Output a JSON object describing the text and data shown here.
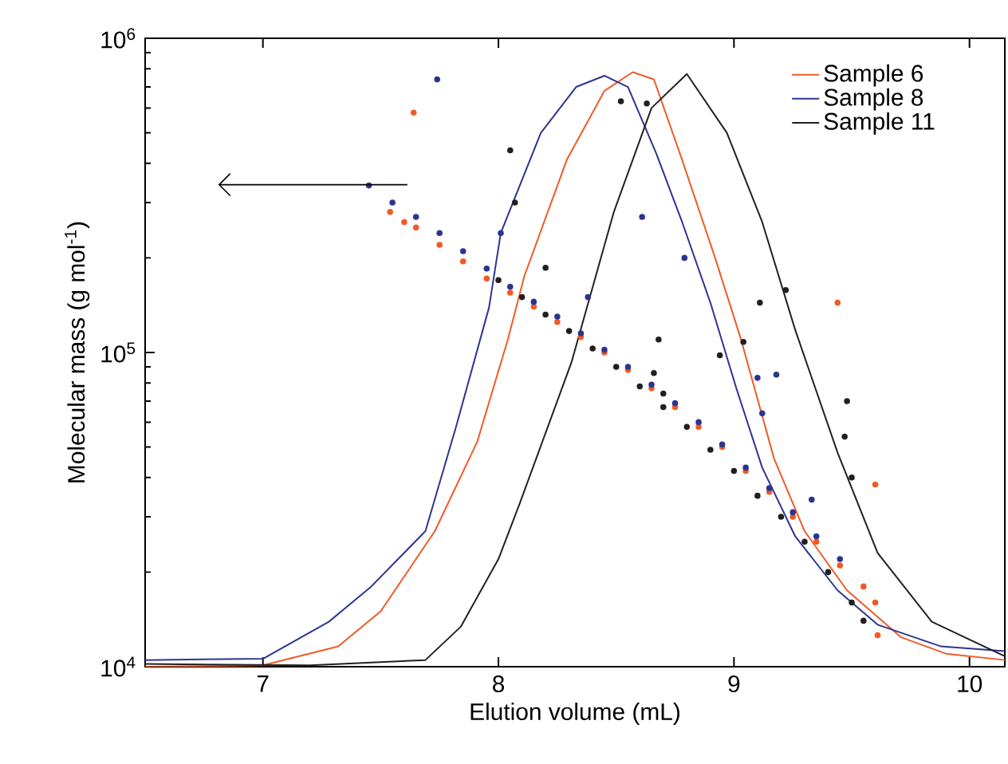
{
  "chart_data": {
    "type": "line",
    "xlabel": "Elution volume (mL)",
    "ylabel": "Molecular mass (g mol$^{-1}$)",
    "log": "y",
    "xlim": [
      6.5,
      10.15
    ],
    "ylim": [
      10000,
      1000000
    ],
    "xticks": [
      7,
      8,
      9,
      10
    ],
    "yticks": [
      {
        "value": 10000,
        "label": "10$^{4}$"
      },
      {
        "value": 100000,
        "label": "10$^{5}$"
      },
      {
        "value": 1000000,
        "label": "10$^{6}$"
      }
    ],
    "legend": "top right",
    "grid": false,
    "series": [
      {
        "name": "Sample 6",
        "color": "#f05a28",
        "marker": "none",
        "x": [
          6.5,
          7.0,
          7.32,
          7.5,
          7.73,
          7.91,
          8.04,
          8.11,
          8.29,
          8.45,
          8.57,
          8.66,
          8.78,
          8.92,
          9.03,
          9.17,
          9.3,
          9.48,
          9.71,
          9.9,
          10.15
        ],
        "values": [
          10000,
          10100,
          11600,
          15000,
          27000,
          52000,
          110000,
          175000,
          410000,
          680000,
          780000,
          740000,
          410000,
          200000,
          110000,
          46000,
          27000,
          17500,
          12400,
          11000,
          10500
        ]
      },
      {
        "name": "Sample 8",
        "color": "#2b3590",
        "marker": "none",
        "x": [
          6.5,
          7.0,
          7.28,
          7.46,
          7.69,
          7.82,
          7.96,
          8.01,
          8.18,
          8.33,
          8.45,
          8.55,
          8.67,
          8.78,
          8.9,
          9.01,
          9.12,
          9.26,
          9.44,
          9.61,
          9.88,
          10.15
        ],
        "values": [
          10500,
          10600,
          13900,
          18000,
          27000,
          58000,
          139000,
          240000,
          500000,
          700000,
          760000,
          700000,
          430000,
          260000,
          144000,
          77000,
          43000,
          26000,
          17500,
          13600,
          11600,
          11200
        ]
      },
      {
        "name": "Sample 11",
        "color": "#231f20",
        "marker": "none",
        "x": [
          6.5,
          7.2,
          7.69,
          7.84,
          8.0,
          8.09,
          8.31,
          8.49,
          8.65,
          8.8,
          8.97,
          9.12,
          9.26,
          9.44,
          9.61,
          9.84,
          10.15
        ],
        "values": [
          10200,
          10100,
          10500,
          13400,
          22000,
          33000,
          93000,
          280000,
          600000,
          770000,
          500000,
          260000,
          118000,
          48000,
          23000,
          13900,
          10800
        ]
      },
      {
        "type": "scatter",
        "color": "#f05a28",
        "marker": "circle",
        "x": [
          7.54,
          7.6,
          7.65,
          7.75,
          7.85,
          7.95,
          8.05,
          8.15,
          8.25,
          8.35,
          8.45,
          8.55,
          8.65,
          8.75,
          8.85,
          8.95,
          9.05,
          9.15,
          9.25,
          9.35,
          9.45,
          9.55,
          9.6,
          7.64,
          9.44,
          9.6,
          9.61
        ],
        "values": [
          280000,
          260000,
          250000,
          220000,
          195000,
          172000,
          155000,
          140000,
          125000,
          112000,
          100000,
          88000,
          77000,
          67000,
          58000,
          50000,
          42000,
          36000,
          30000,
          25000,
          21000,
          18000,
          16000,
          580000,
          144000,
          38000,
          12600
        ]
      },
      {
        "type": "scatter",
        "color": "#2b3590",
        "marker": "circle",
        "x": [
          7.45,
          7.55,
          7.65,
          7.75,
          7.85,
          7.95,
          8.05,
          8.15,
          8.25,
          8.35,
          8.45,
          8.55,
          8.65,
          8.75,
          8.85,
          8.95,
          9.05,
          9.15,
          9.25,
          9.35,
          9.45,
          7.74,
          8.61,
          8.79,
          8.38,
          8.01,
          9.1,
          9.18,
          9.12,
          9.33
        ],
        "values": [
          340000,
          300000,
          270000,
          240000,
          210000,
          185000,
          162000,
          145000,
          130000,
          115000,
          102000,
          90000,
          79000,
          69000,
          60000,
          51000,
          43000,
          37000,
          31000,
          26000,
          22000,
          740000,
          270000,
          200000,
          150000,
          240000,
          83000,
          85000,
          64000,
          34000
        ]
      },
      {
        "type": "scatter",
        "color": "#231f20",
        "marker": "circle",
        "x": [
          8.0,
          8.1,
          8.2,
          8.3,
          8.4,
          8.5,
          8.6,
          8.7,
          8.8,
          8.9,
          9.0,
          9.1,
          9.2,
          9.3,
          9.4,
          9.5,
          9.55,
          8.05,
          8.52,
          8.63,
          8.07,
          8.2,
          8.68,
          9.11,
          9.22,
          9.04,
          8.94,
          9.48,
          9.47,
          9.5,
          8.66,
          8.7
        ],
        "values": [
          170000,
          150000,
          132000,
          117000,
          103000,
          90000,
          78000,
          67000,
          58000,
          49000,
          42000,
          35000,
          30000,
          25000,
          20000,
          16000,
          14000,
          440000,
          630000,
          620000,
          300000,
          186000,
          110000,
          144000,
          158000,
          108000,
          98000,
          70000,
          54000,
          40000,
          86000,
          74000
        ]
      }
    ]
  }
}
